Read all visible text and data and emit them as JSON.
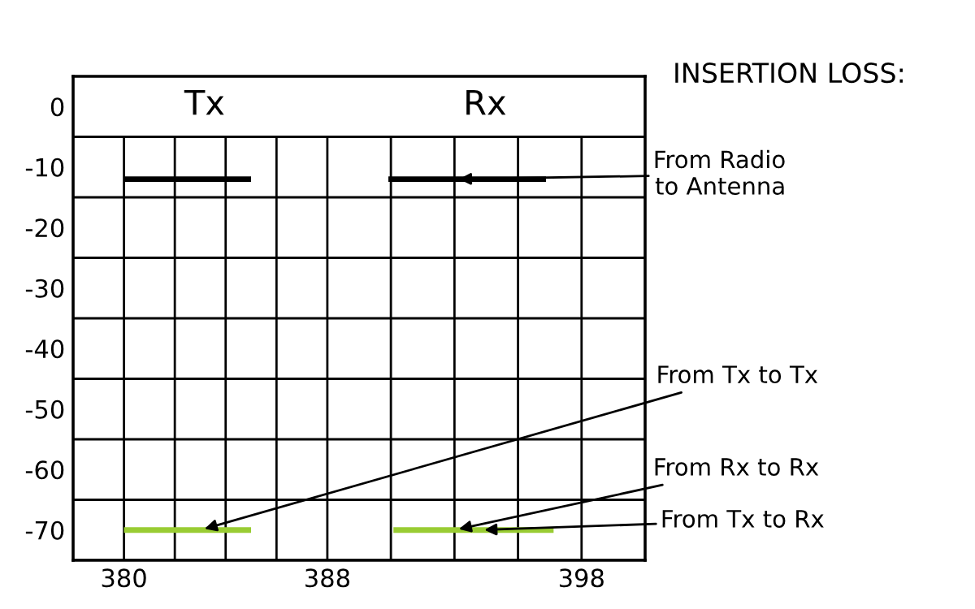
{
  "chart_data": {
    "type": "line",
    "xlim": [
      378,
      400.5
    ],
    "xticks": [
      380,
      {
        "value": 382,
        "label": null
      },
      {
        "value": 384,
        "label": null
      },
      {
        "value": 386,
        "label": null
      },
      388,
      {
        "value": 390.5,
        "label": null
      },
      {
        "value": 393,
        "label": null
      },
      {
        "value": 395.5,
        "label": null
      },
      398
    ],
    "ylim": [
      -75,
      5
    ],
    "yticks": [
      {
        "value": -75,
        "label": null
      },
      -70,
      {
        "value": -65,
        "label": null
      },
      -60,
      {
        "value": -55,
        "label": null
      },
      -50,
      {
        "value": -45,
        "label": null
      },
      -40,
      {
        "value": -35,
        "label": null
      },
      -30,
      {
        "value": -25,
        "label": null
      },
      -20,
      {
        "value": -15,
        "label": null
      },
      -10,
      {
        "value": -5,
        "label": null
      },
      0
    ],
    "grid": true,
    "line_style": "solid",
    "series": [
      {
        "color": "#000000",
        "x": [
          380,
          385
        ],
        "values": [
          -12,
          -12
        ]
      },
      {
        "color": "#99cc33",
        "x": [
          380,
          385
        ],
        "values": [
          -70,
          -70
        ]
      },
      {
        "color": "#000000",
        "x": [
          390.4,
          396.6
        ],
        "values": [
          -12,
          -12
        ]
      },
      {
        "color": "#99cc33",
        "x": [
          390.6,
          396.9
        ],
        "values": [
          -70,
          -70
        ]
      }
    ],
    "annotations": [
      "Tx",
      "Rx",
      "INSERTION LOSS:",
      {
        "text": "From Radio\nto Antenna",
        "x": 393,
        "y": -12
      },
      {
        "text": "From Tx to Tx",
        "x": 383,
        "y": -70
      },
      {
        "text": "From Rx to Rx",
        "x": 393,
        "y": -70
      },
      {
        "text": "From Tx to Rx",
        "x": 394,
        "y": -70
      }
    ]
  }
}
